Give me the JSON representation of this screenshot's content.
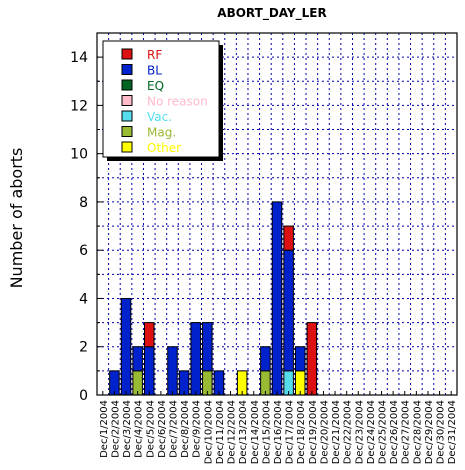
{
  "chart_data": {
    "type": "bar",
    "stacked": true,
    "title": "ABORT_DAY_LER",
    "xlabel": "",
    "ylabel": "Number of aborts",
    "ylim": [
      0,
      15
    ],
    "yticks": [
      0,
      2,
      4,
      6,
      8,
      10,
      12,
      14
    ],
    "grid": true,
    "legend_position": "top-left",
    "categories": [
      "Dec/1/2004",
      "Dec/2/2004",
      "Dec/3/2004",
      "Dec/4/2004",
      "Dec/5/2004",
      "Dec/6/2004",
      "Dec/7/2004",
      "Dec/8/2004",
      "Dec/9/2004",
      "Dec/10/2004",
      "Dec/11/2004",
      "Dec/12/2004",
      "Dec/13/2004",
      "Dec/14/2004",
      "Dec/15/2004",
      "Dec/16/2004",
      "Dec/17/2004",
      "Dec/18/2004",
      "Dec/19/2004",
      "Dec/20/2004",
      "Dec/21/2004",
      "Dec/22/2004",
      "Dec/23/2004",
      "Dec/24/2004",
      "Dec/25/2004",
      "Dec/26/2004",
      "Dec/27/2004",
      "Dec/28/2004",
      "Dec/29/2004",
      "Dec/30/2004",
      "Dec/31/2004"
    ],
    "series": [
      {
        "name": "Other",
        "color": "#ffff00",
        "values": [
          0,
          0,
          0,
          0,
          0,
          0,
          0,
          0,
          0,
          0,
          0,
          0,
          1,
          0,
          0,
          0,
          0,
          1,
          0,
          0,
          0,
          0,
          0,
          0,
          0,
          0,
          0,
          0,
          0,
          0,
          0
        ]
      },
      {
        "name": "Mag.",
        "color": "#99bb33",
        "values": [
          0,
          0,
          0,
          1,
          0,
          0,
          0,
          0,
          0,
          1,
          0,
          0,
          0,
          0,
          1,
          0,
          0,
          0,
          0,
          0,
          0,
          0,
          0,
          0,
          0,
          0,
          0,
          0,
          0,
          0,
          0
        ]
      },
      {
        "name": "Vac.",
        "color": "#55ddee",
        "values": [
          0,
          0,
          0,
          0,
          0,
          0,
          0,
          0,
          0,
          0,
          0,
          0,
          0,
          0,
          0,
          0,
          1,
          0,
          0,
          0,
          0,
          0,
          0,
          0,
          0,
          0,
          0,
          0,
          0,
          0,
          0
        ]
      },
      {
        "name": "No reason",
        "color": "#ffbbcc",
        "values": [
          0,
          0,
          0,
          0,
          0,
          0,
          0,
          0,
          0,
          0,
          0,
          0,
          0,
          0,
          0,
          0,
          0,
          0,
          0,
          0,
          0,
          0,
          0,
          0,
          0,
          0,
          0,
          0,
          0,
          0,
          0
        ]
      },
      {
        "name": "EQ",
        "color": "#006622",
        "values": [
          0,
          0,
          0,
          0,
          0,
          0,
          0,
          0,
          0,
          0,
          0,
          0,
          0,
          0,
          0,
          0,
          0,
          0,
          0,
          0,
          0,
          0,
          0,
          0,
          0,
          0,
          0,
          0,
          0,
          0,
          0
        ]
      },
      {
        "name": "BL",
        "color": "#0022cc",
        "values": [
          0,
          1,
          4,
          1,
          2,
          0,
          2,
          1,
          3,
          2,
          1,
          0,
          0,
          0,
          1,
          8,
          5,
          1,
          0,
          0,
          0,
          0,
          0,
          0,
          0,
          0,
          0,
          0,
          0,
          0,
          0
        ]
      },
      {
        "name": "RF",
        "color": "#dd1111",
        "values": [
          0,
          0,
          0,
          0,
          1,
          0,
          0,
          0,
          0,
          0,
          0,
          0,
          0,
          0,
          0,
          0,
          1,
          0,
          3,
          0,
          0,
          0,
          0,
          0,
          0,
          0,
          0,
          0,
          0,
          0,
          0
        ]
      }
    ],
    "legend_order": [
      "RF",
      "BL",
      "EQ",
      "No reason",
      "Vac.",
      "Mag.",
      "Other"
    ]
  }
}
